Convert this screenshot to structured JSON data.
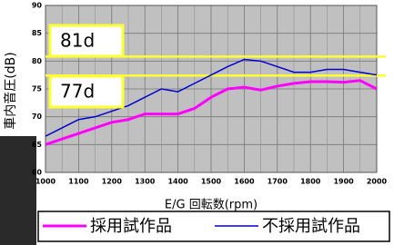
{
  "chart_data": {
    "type": "line",
    "x": [
      1000,
      1050,
      1100,
      1150,
      1200,
      1250,
      1300,
      1350,
      1400,
      1450,
      1500,
      1550,
      1600,
      1650,
      1700,
      1750,
      1800,
      1850,
      1900,
      1950,
      2000
    ],
    "series": [
      {
        "name": "採用試作品",
        "color": "#ff00ff",
        "values": [
          65,
          66,
          67,
          68,
          69,
          69.5,
          70.5,
          70.5,
          70.5,
          71.5,
          73.5,
          75,
          75.3,
          74.8,
          75.5,
          76,
          76.3,
          76.3,
          76.2,
          76.5,
          75
        ]
      },
      {
        "name": "不採用試作品",
        "color": "#0000cc",
        "values": [
          66.5,
          68,
          69.5,
          70,
          71,
          72,
          73.5,
          75,
          74.5,
          76,
          77.5,
          79,
          80.3,
          80,
          79,
          78,
          78,
          78.5,
          78.5,
          78,
          77.5
        ]
      }
    ],
    "reference_lines": [
      {
        "value": 80.8,
        "label": "81d"
      },
      {
        "value": 77.4,
        "label": "77d"
      }
    ],
    "xlim": [
      1000,
      2000
    ],
    "xticks": [
      1000,
      1100,
      1200,
      1300,
      1400,
      1500,
      1600,
      1700,
      1800,
      1900,
      2000
    ],
    "ylim": [
      60,
      90
    ],
    "yticks": [
      60,
      65,
      70,
      75,
      80,
      85,
      90
    ],
    "x_label": "E/G 回転数(rpm)",
    "y_label": "車内音圧(dB)",
    "grid": true
  }
}
